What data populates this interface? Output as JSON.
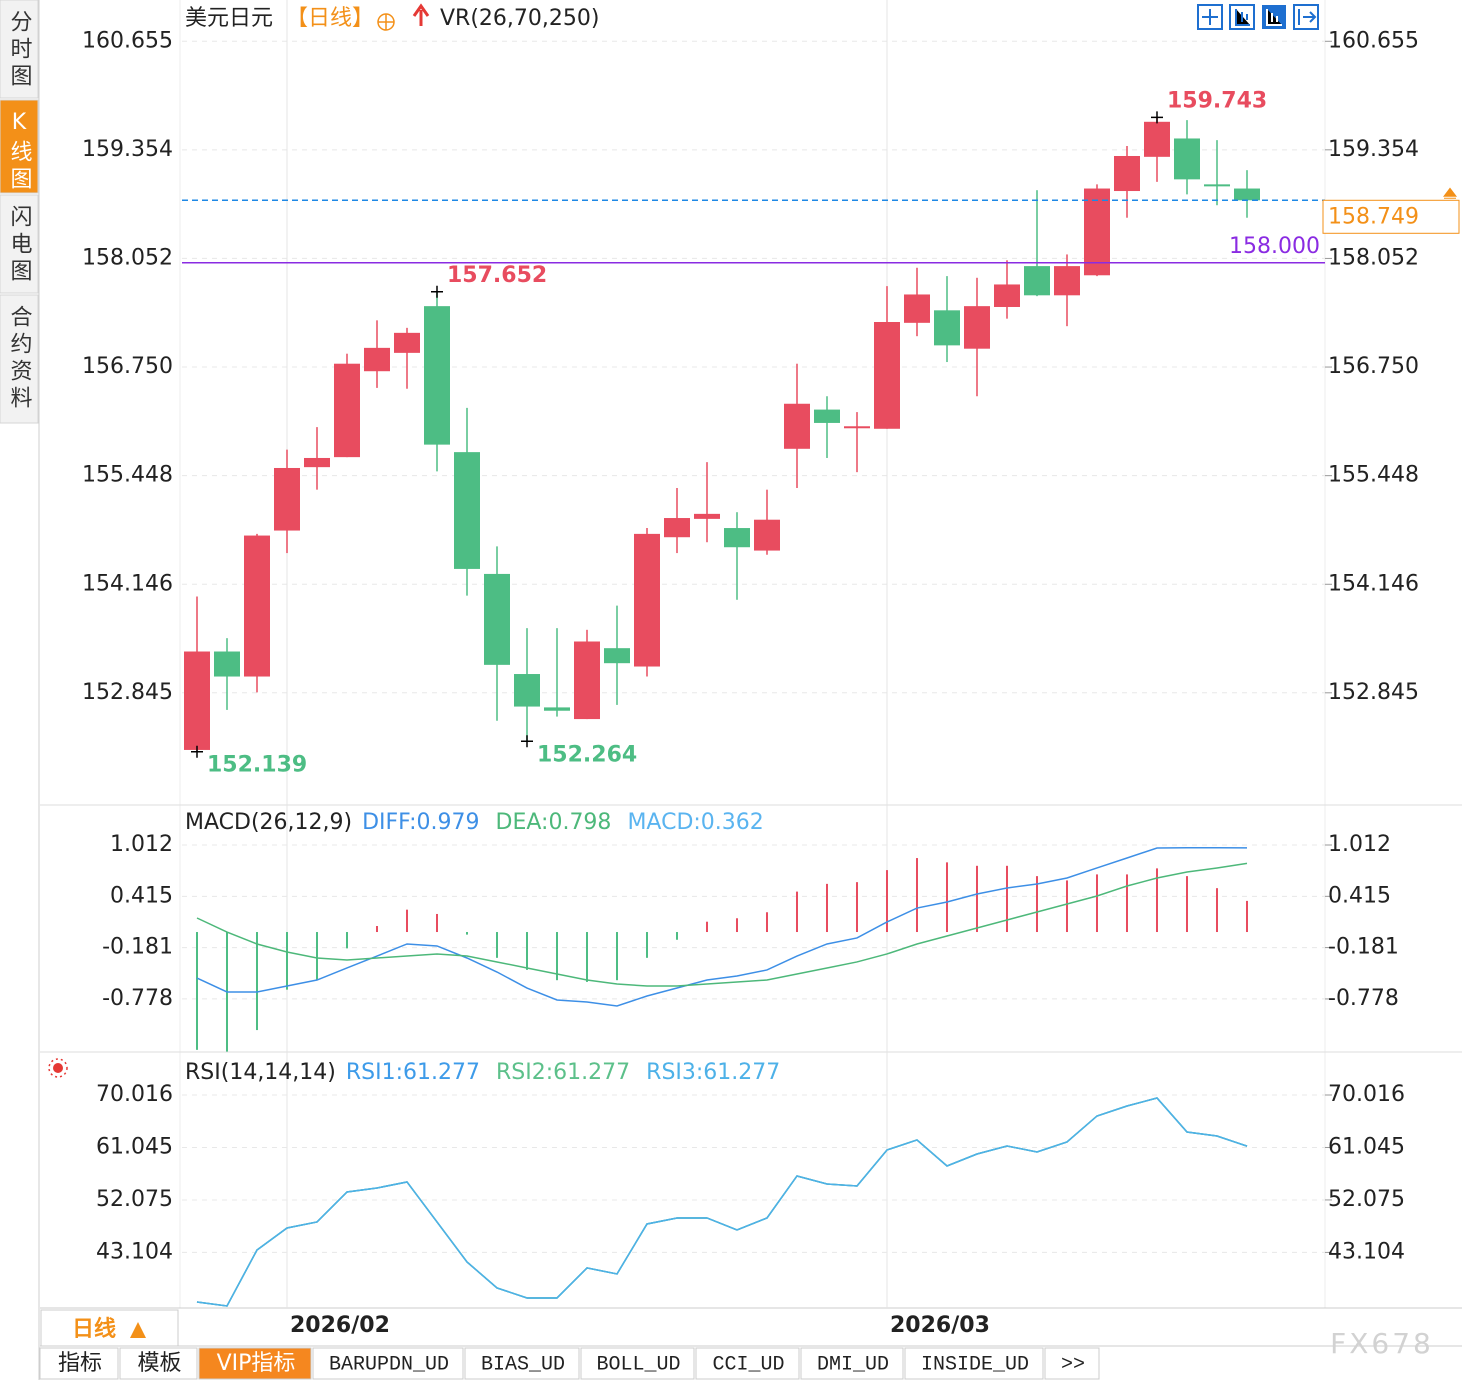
{
  "sidebar": [
    "分时图",
    "K线图",
    "闪电图",
    "合约资料"
  ],
  "active_sidebar": 1,
  "chart_data": [
    {
      "type": "candlestick",
      "title": "美元日元",
      "period": "【日线】",
      "indicator": "VR(26,70,250)",
      "categories": [
        null,
        null,
        null,
        "2026/02",
        null,
        null,
        null,
        null,
        null,
        null,
        null,
        null,
        null,
        null,
        null,
        null,
        null,
        null,
        null,
        null,
        null,
        null,
        null,
        "2026/03",
        null,
        null,
        null,
        null,
        null,
        null,
        null,
        null,
        null,
        null,
        null,
        null
      ],
      "open": [
        152.16,
        153.34,
        153.04,
        154.79,
        155.55,
        155.67,
        156.7,
        156.92,
        157.48,
        155.73,
        154.27,
        153.07,
        152.67,
        152.53,
        153.38,
        153.16,
        154.71,
        154.93,
        154.82,
        154.55,
        155.77,
        156.24,
        156.02,
        156.01,
        157.28,
        157.43,
        156.97,
        157.47,
        157.96,
        157.61,
        157.85,
        158.86,
        159.27,
        159.49,
        158.94,
        158.89
      ],
      "high": [
        154.0,
        153.5,
        154.75,
        155.76,
        156.03,
        156.91,
        157.31,
        157.22,
        157.652,
        156.26,
        154.6,
        153.62,
        153.62,
        153.6,
        153.89,
        154.82,
        155.3,
        155.61,
        155.01,
        155.28,
        156.79,
        156.4,
        156.21,
        157.72,
        157.94,
        157.84,
        157.82,
        158.03,
        158.87,
        158.1,
        158.94,
        159.4,
        159.743,
        159.71,
        159.47,
        159.11
      ],
      "low": [
        152.139,
        152.64,
        152.85,
        154.52,
        155.28,
        155.67,
        156.5,
        156.49,
        155.5,
        154.01,
        152.51,
        152.264,
        152.56,
        152.53,
        152.7,
        153.04,
        154.52,
        154.65,
        153.96,
        154.5,
        155.3,
        155.66,
        155.49,
        156.01,
        157.12,
        156.81,
        156.4,
        157.33,
        157.6,
        157.24,
        157.84,
        158.54,
        158.97,
        158.82,
        158.69,
        158.54
      ],
      "close": [
        153.34,
        153.04,
        154.73,
        155.54,
        155.66,
        156.79,
        156.98,
        157.16,
        155.82,
        154.33,
        153.18,
        152.68,
        152.63,
        153.46,
        153.2,
        154.75,
        154.94,
        154.99,
        154.59,
        154.92,
        156.31,
        156.08,
        156.04,
        157.29,
        157.62,
        157.01,
        157.48,
        157.74,
        157.61,
        157.96,
        158.89,
        159.28,
        159.69,
        159.0,
        158.92,
        158.749
      ],
      "up_color": "#e84c5f",
      "down_color": "#4dbd84",
      "ylim": [
        151.5,
        161.15
      ],
      "yticks": [
        160.655,
        159.354,
        158.052,
        {
          "value": 156.75,
          "label": "156.750"
        },
        155.448,
        154.146,
        152.845
      ],
      "grid": true,
      "marked_highs": [
        8,
        32
      ],
      "marked_lows": [
        0,
        11
      ],
      "price_lines": [
        {
          "value": 158,
          "label": "158.000",
          "color": "#8a2be2",
          "style": "solid"
        },
        {
          "value": 158.749,
          "label": "158.749",
          "color": "#1e88e5",
          "label_color": "#f39018",
          "style": "dashed"
        }
      ]
    },
    {
      "type": "combo",
      "title": "MACD(26,12,9)",
      "ylim": [
        -1.395,
        1.477
      ],
      "yticks": [
        1.012,
        0.415,
        -0.181,
        -0.778
      ],
      "grid": true,
      "series": [
        {
          "name": "DIFF:0.979",
          "type": "line",
          "color": "#3d8fe6",
          "values": [
            -0.535,
            -0.697,
            -0.697,
            -0.628,
            -0.558,
            -0.418,
            -0.279,
            -0.139,
            -0.162,
            -0.302,
            -0.465,
            -0.651,
            -0.79,
            -0.814,
            -0.86,
            -0.744,
            -0.651,
            -0.558,
            -0.511,
            -0.441,
            -0.279,
            -0.139,
            -0.069,
            0.117,
            0.279,
            0.349,
            0.442,
            0.512,
            0.559,
            0.628,
            0.745,
            0.861,
            0.977,
            0.98,
            0.98,
            0.979
          ]
        },
        {
          "name": "DEA:0.798",
          "type": "line",
          "color": "#4db87a",
          "values": [
            0.163,
            0,
            -0.139,
            -0.232,
            -0.302,
            -0.325,
            -0.302,
            -0.279,
            -0.255,
            -0.279,
            -0.348,
            -0.418,
            -0.488,
            -0.558,
            -0.604,
            -0.628,
            -0.628,
            -0.604,
            -0.581,
            -0.558,
            -0.488,
            -0.418,
            -0.348,
            -0.255,
            -0.139,
            -0.046,
            0.047,
            0.14,
            0.233,
            0.326,
            0.419,
            0.535,
            0.628,
            0.698,
            0.745,
            0.798
          ]
        },
        {
          "name": "MACD:0.362",
          "type": "bar",
          "color": "#5ab4f0",
          "up_color": "#e84c5f",
          "down_color": "#4dbd84",
          "values": [
            -1.37,
            -1.39,
            -1.14,
            -0.67,
            -0.56,
            -0.19,
            0.07,
            0.26,
            0.21,
            -0.03,
            -0.3,
            -0.44,
            -0.56,
            -0.58,
            -0.56,
            -0.3,
            -0.09,
            0.12,
            0.16,
            0.23,
            0.47,
            0.56,
            0.58,
            0.72,
            0.86,
            0.81,
            0.77,
            0.77,
            0.65,
            0.6,
            0.67,
            0.67,
            0.74,
            0.65,
            0.51,
            0.362
          ]
        }
      ]
    },
    {
      "type": "line",
      "title": "RSI(14,14,14)",
      "ylim": [
        33.6,
        77.37
      ],
      "yticks": [
        70.016,
        61.045,
        52.075,
        43.104
      ],
      "grid": true,
      "series": [
        {
          "name": "RSI1:61.277",
          "type": "line",
          "color": "#3d9be9",
          "values": [
            34.63,
            33.95,
            43.52,
            47.28,
            48.31,
            53.44,
            54.12,
            55.15,
            48.31,
            41.47,
            37.03,
            35.32,
            35.32,
            40.45,
            39.42,
            47.97,
            48.99,
            48.99,
            46.94,
            48.99,
            56.17,
            54.81,
            54.46,
            60.62,
            62.33,
            57.88,
            59.93,
            61.3,
            60.27,
            61.99,
            66.43,
            68.14,
            69.5,
            63.69,
            63.01,
            61.277
          ]
        },
        {
          "name": "RSI2:61.277",
          "type": "line",
          "color": "#5cc08a",
          "values": [
            34.63,
            33.95,
            43.52,
            47.28,
            48.31,
            53.44,
            54.12,
            55.15,
            48.31,
            41.47,
            37.03,
            35.32,
            35.32,
            40.45,
            39.42,
            47.97,
            48.99,
            48.99,
            46.94,
            48.99,
            56.17,
            54.81,
            54.46,
            60.62,
            62.33,
            57.88,
            59.93,
            61.3,
            60.27,
            61.99,
            66.43,
            68.14,
            69.5,
            63.69,
            63.01,
            61.277
          ]
        },
        {
          "name": "RSI3:61.277",
          "type": "line",
          "color": "#4db1e8",
          "values": [
            34.63,
            33.95,
            43.52,
            47.28,
            48.31,
            53.44,
            54.12,
            55.15,
            48.31,
            41.47,
            37.03,
            35.32,
            35.32,
            40.45,
            39.42,
            47.97,
            48.99,
            48.99,
            46.94,
            48.99,
            56.17,
            54.81,
            54.46,
            60.62,
            62.33,
            57.88,
            59.93,
            61.3,
            60.27,
            61.99,
            66.43,
            68.14,
            69.5,
            63.69,
            63.01,
            61.277
          ]
        }
      ]
    }
  ],
  "timeframe": "日线",
  "tabs": [
    "指标",
    "模板",
    "VIP指标",
    "BARUPDN_UD",
    "BIAS_UD",
    "BOLL_UD",
    "CCI_UD",
    "DMI_UD",
    "INSIDE_UD",
    ">>"
  ],
  "active_tab": 2,
  "watermark": "FX678"
}
